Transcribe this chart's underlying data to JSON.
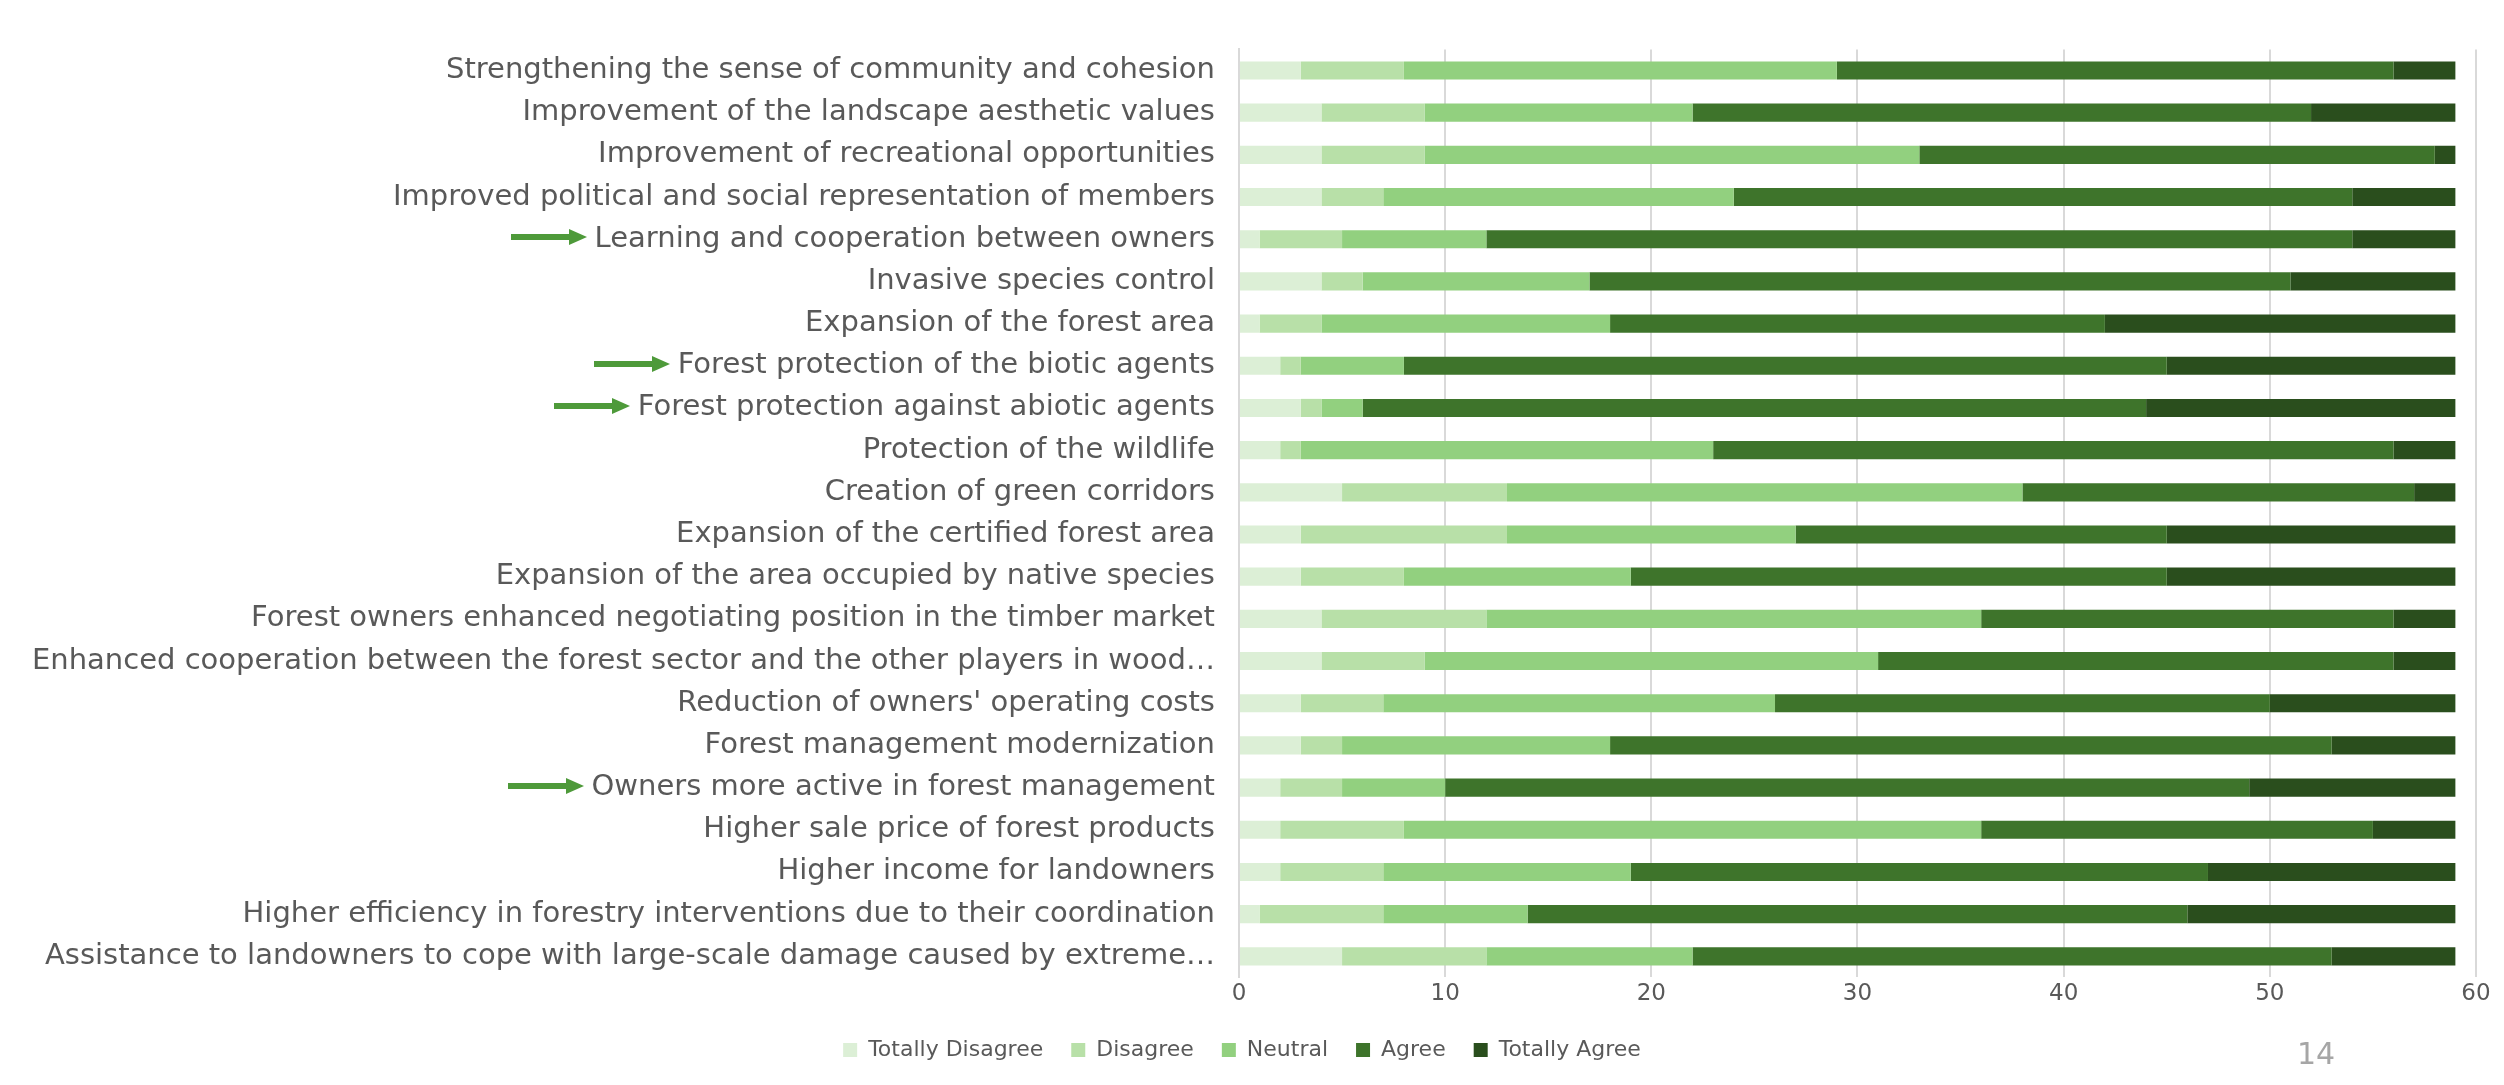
{
  "chart_data": {
    "type": "bar",
    "orientation": "horizontal",
    "stacked": true,
    "categories": [
      "Strengthening the sense of community and cohesion",
      "Improvement of the landscape aesthetic values",
      "Improvement of recreational opportunities",
      "Improved political and social representation of members",
      "Learning and cooperation between owners",
      "Invasive species control",
      "Expansion of the forest area",
      "Forest protection of the biotic agents",
      "Forest protection against abiotic agents",
      "Protection of the wildlife",
      "Creation of green corridors",
      "Expansion of the certified forest area",
      "Expansion of the area occupied by native species",
      "Forest owners enhanced negotiating position in the timber market",
      "Enhanced cooperation between the forest sector and the other players in wood…",
      "Reduction of owners' operating costs",
      "Forest management modernization",
      "Owners more active in forest management",
      "Higher sale price of forest products",
      "Higher income for landowners",
      "Higher efficiency in forestry interventions due to their coordination",
      "Assistance to landowners to cope with large-scale damage caused by extreme…"
    ],
    "series": [
      {
        "name": "Totally Disagree",
        "color": "#dcefd6",
        "values": [
          3,
          4,
          4,
          4,
          1,
          4,
          1,
          2,
          3,
          2,
          5,
          3,
          3,
          4,
          4,
          3,
          3,
          2,
          2,
          2,
          1,
          5
        ]
      },
      {
        "name": "Disagree",
        "color": "#b8e0a8",
        "values": [
          5,
          5,
          5,
          3,
          4,
          2,
          3,
          1,
          1,
          1,
          8,
          10,
          5,
          8,
          5,
          4,
          2,
          3,
          6,
          5,
          6,
          7
        ]
      },
      {
        "name": "Neutral",
        "color": "#92d07f",
        "values": [
          21,
          13,
          24,
          17,
          7,
          11,
          14,
          5,
          2,
          20,
          25,
          14,
          11,
          24,
          22,
          19,
          13,
          5,
          28,
          12,
          7,
          10
        ]
      },
      {
        "name": "Agree",
        "color": "#3e742b",
        "values": [
          27,
          30,
          25,
          30,
          42,
          34,
          24,
          37,
          38,
          33,
          19,
          18,
          26,
          20,
          25,
          24,
          35,
          39,
          19,
          28,
          32,
          31
        ]
      },
      {
        "name": "Totally Agree",
        "color": "#2a4e1d",
        "values": [
          3,
          7,
          1,
          5,
          5,
          8,
          17,
          14,
          15,
          3,
          2,
          14,
          14,
          3,
          3,
          9,
          6,
          10,
          4,
          12,
          13,
          6
        ]
      }
    ],
    "xlim": [
      0,
      60
    ],
    "xticks": [
      0,
      10,
      20,
      30,
      40,
      50,
      60
    ],
    "grid": "x",
    "legend": "bottom",
    "annotations": [
      "14"
    ]
  }
}
